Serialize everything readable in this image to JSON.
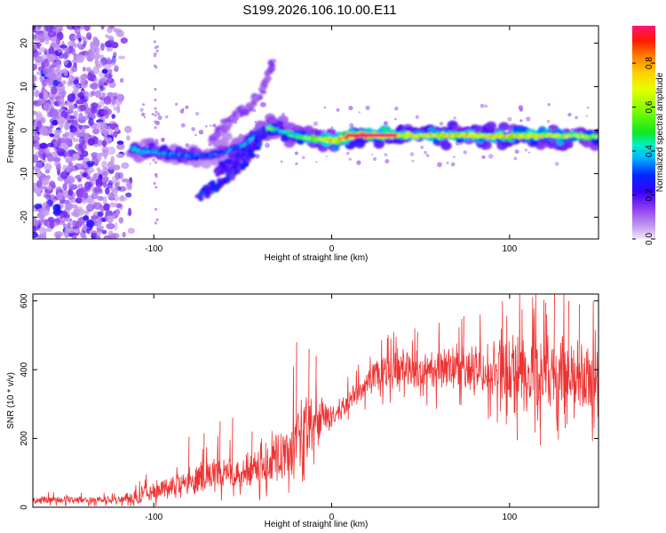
{
  "title": "S199.2026.106.10.00.E11",
  "chart_data": [
    {
      "type": "heatmap",
      "name": "spectrogram",
      "xlabel": "Height of straight line (km)",
      "ylabel": "Frequency (Hz)",
      "xlim": [
        -168,
        150
      ],
      "ylim": [
        -25,
        24
      ],
      "xticks": [
        {
          "value": -100,
          "label": "-100"
        },
        {
          "value": 0,
          "label": "0"
        },
        {
          "value": 100,
          "label": "100"
        }
      ],
      "yticks": [
        {
          "value": -20,
          "label": "-20"
        },
        {
          "value": -10,
          "label": "-10"
        },
        {
          "value": 0,
          "label": "0"
        },
        {
          "value": 10,
          "label": "10"
        },
        {
          "value": 20,
          "label": "20"
        }
      ],
      "colorbar": {
        "label": "Normalized spectral amplitude",
        "range": [
          0,
          0.97
        ],
        "ticks": [
          {
            "value": 0.0,
            "label": "0.0"
          },
          {
            "value": 0.2,
            "label": "0.2"
          },
          {
            "value": 0.4,
            "label": "0.4"
          },
          {
            "value": 0.6,
            "label": "0.6"
          },
          {
            "value": 0.8,
            "label": "0.8"
          }
        ]
      },
      "ridge": {
        "x": [
          -112,
          -100,
          -90,
          -80,
          -70,
          -60,
          -50,
          -42,
          -36,
          -30,
          -20,
          -10,
          0,
          5,
          10,
          20,
          40,
          60,
          80,
          100,
          120,
          140,
          150
        ],
        "y": [
          -4.5,
          -5.0,
          -5.5,
          -6.0,
          -5.8,
          -5.0,
          -3.5,
          -1.0,
          0.5,
          0.0,
          -1.5,
          -2.0,
          -2.3,
          -2.0,
          -1.2,
          -1.2,
          -1.2,
          -1.2,
          -1.3,
          -1.4,
          -1.3,
          -1.4,
          -1.5
        ],
        "amplitude": [
          0.45,
          0.38,
          0.35,
          0.33,
          0.3,
          0.32,
          0.38,
          0.45,
          0.55,
          0.45,
          0.55,
          0.62,
          0.78,
          0.85,
          0.96,
          0.96,
          0.72,
          0.75,
          0.72,
          0.74,
          0.7,
          0.62,
          0.55
        ]
      },
      "branches": [
        {
          "x": [
            -75,
            -62,
            -50,
            -42,
            -38
          ],
          "y": [
            -15,
            -12,
            -8,
            -4,
            0
          ],
          "amplitude": 0.25
        },
        {
          "x": [
            -68,
            -55,
            -45,
            -38,
            -33
          ],
          "y": [
            -2,
            3,
            6,
            10,
            16
          ],
          "amplitude": 0.12
        },
        {
          "x": [
            -65,
            -55,
            -45,
            -40
          ],
          "y": [
            -10,
            -7,
            -4,
            -1
          ],
          "amplitude": 0.22
        }
      ],
      "noise_region": {
        "x": [
          -168,
          -112
        ],
        "y": [
          -25,
          24
        ],
        "amplitude_range": [
          0.05,
          0.3
        ]
      }
    },
    {
      "type": "line",
      "name": "snr",
      "xlabel": "Height of straight line (km)",
      "ylabel": "SNR (10 * v/v)",
      "xlim": [
        -168,
        150
      ],
      "ylim": [
        0,
        620
      ],
      "xticks": [
        {
          "value": -100,
          "label": "-100"
        },
        {
          "value": 0,
          "label": "0"
        },
        {
          "value": 100,
          "label": "100"
        }
      ],
      "yticks": [
        {
          "value": 0,
          "label": "0"
        },
        {
          "value": 200,
          "label": "200"
        },
        {
          "value": 400,
          "label": "400"
        },
        {
          "value": 600,
          "label": "600"
        }
      ],
      "color": "#ee3333",
      "envelope": {
        "x": [
          -168,
          -120,
          -110,
          -100,
          -90,
          -80,
          -70,
          -60,
          -50,
          -40,
          -30,
          -25,
          -20,
          -15,
          -10,
          -5,
          0,
          5,
          10,
          15,
          20,
          30,
          40,
          50,
          60,
          70,
          80,
          90,
          100,
          110,
          120,
          130,
          140,
          150
        ],
        "mean": [
          20,
          22,
          30,
          45,
          60,
          75,
          90,
          100,
          105,
          110,
          140,
          170,
          200,
          230,
          250,
          250,
          260,
          280,
          310,
          340,
          365,
          390,
          400,
          400,
          405,
          400,
          405,
          400,
          400,
          390,
          385,
          380,
          375,
          375
        ],
        "spread": [
          12,
          14,
          25,
          35,
          40,
          45,
          55,
          60,
          65,
          60,
          90,
          110,
          140,
          110,
          90,
          60,
          40,
          40,
          40,
          40,
          50,
          60,
          65,
          70,
          75,
          85,
          90,
          95,
          110,
          120,
          130,
          130,
          125,
          120
        ]
      },
      "peaks": [
        {
          "x": -80.5,
          "y": 205
        },
        {
          "x": -72,
          "y": 215
        },
        {
          "x": -63,
          "y": 250
        },
        {
          "x": -56,
          "y": 260
        },
        {
          "x": -45,
          "y": 220
        },
        {
          "x": -20,
          "y": 480
        },
        {
          "x": -13,
          "y": 460
        },
        {
          "x": -9,
          "y": 440
        },
        {
          "x": -16,
          "y": 95
        },
        {
          "x": 48,
          "y": 510
        },
        {
          "x": 74,
          "y": 555
        },
        {
          "x": 120,
          "y": 595
        },
        {
          "x": 125,
          "y": 620
        },
        {
          "x": 133,
          "y": 600
        },
        {
          "x": 139,
          "y": 590
        },
        {
          "x": 104,
          "y": 195
        },
        {
          "x": 117,
          "y": 180
        },
        {
          "x": 131,
          "y": 230
        }
      ]
    }
  ]
}
